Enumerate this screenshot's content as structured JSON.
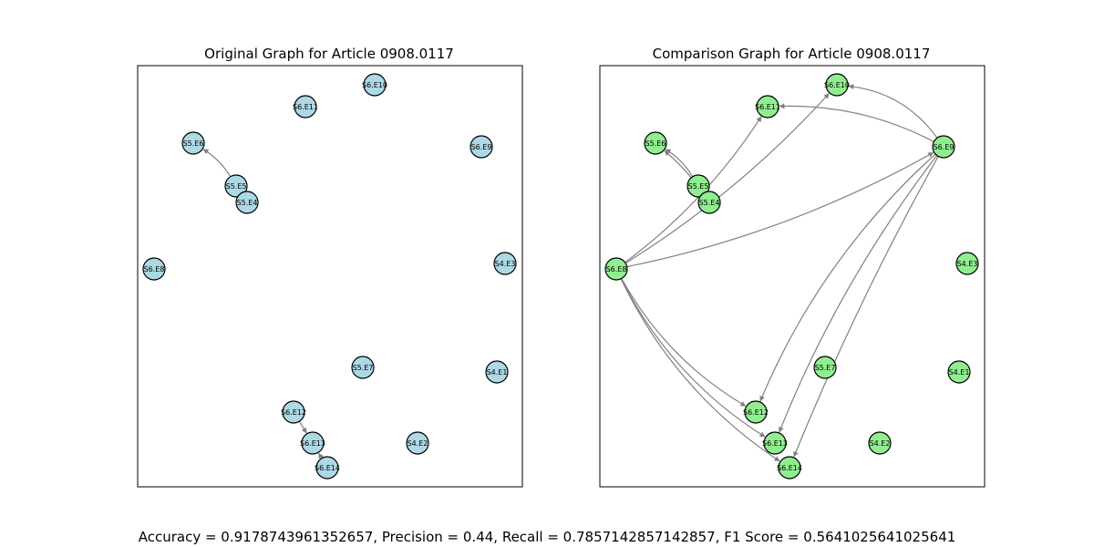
{
  "panels": [
    {
      "title": "Original Graph for Article 0908.0117",
      "node_color": "#add8e6",
      "nodes": [
        "S6.E10",
        "S6.E11",
        "S5.E6",
        "S6.E9",
        "S5.E5",
        "S5.E4",
        "S6.E8",
        "S4.E3",
        "S5.E7",
        "S4.E1",
        "S6.E12",
        "S6.E13",
        "S4.E2",
        "S6.E14"
      ],
      "edges": [
        [
          "S5.E5",
          "S5.E6"
        ],
        [
          "S6.E12",
          "S6.E13"
        ],
        [
          "S6.E14",
          "S6.E13"
        ]
      ]
    },
    {
      "title": "Comparison Graph for Article 0908.0117",
      "node_color": "#90ee90",
      "nodes": [
        "S6.E10",
        "S6.E11",
        "S5.E6",
        "S6.E9",
        "S5.E5",
        "S5.E4",
        "S6.E8",
        "S4.E3",
        "S5.E7",
        "S4.E1",
        "S6.E12",
        "S6.E13",
        "S4.E2",
        "S6.E14"
      ],
      "edges": [
        [
          "S5.E5",
          "S5.E6"
        ],
        [
          "S5.E4",
          "S5.E6"
        ],
        [
          "S6.E8",
          "S6.E11"
        ],
        [
          "S6.E8",
          "S6.E10"
        ],
        [
          "S6.E8",
          "S6.E9"
        ],
        [
          "S6.E8",
          "S6.E12"
        ],
        [
          "S6.E8",
          "S6.E13"
        ],
        [
          "S6.E8",
          "S6.E14"
        ],
        [
          "S6.E9",
          "S6.E10"
        ],
        [
          "S6.E9",
          "S6.E11"
        ],
        [
          "S6.E9",
          "S6.E12"
        ],
        [
          "S6.E9",
          "S6.E13"
        ],
        [
          "S6.E9",
          "S6.E14"
        ]
      ]
    }
  ],
  "metrics": "Accuracy = 0.9178743961352657, Precision = 0.44, Recall = 0.7857142857142857, F1 Score = 0.5641025641025641",
  "colors": {
    "edge": "#808080",
    "node_stroke": "#000000",
    "frame": "#000000"
  }
}
